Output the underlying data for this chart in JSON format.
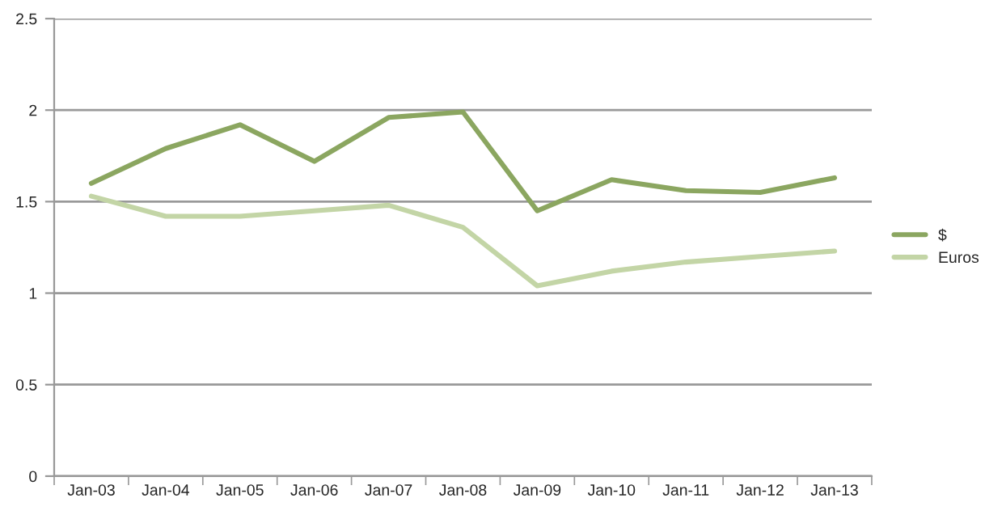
{
  "chart_data": {
    "type": "line",
    "categories": [
      "Jan-03",
      "Jan-04",
      "Jan-05",
      "Jan-06",
      "Jan-07",
      "Jan-08",
      "Jan-09",
      "Jan-10",
      "Jan-11",
      "Jan-12",
      "Jan-13"
    ],
    "series": [
      {
        "name": "$",
        "color": "#8ba660",
        "values": [
          1.6,
          1.79,
          1.92,
          1.72,
          1.96,
          1.99,
          1.45,
          1.62,
          1.56,
          1.55,
          1.63
        ]
      },
      {
        "name": "Euros",
        "color": "#c3d5a6",
        "values": [
          1.53,
          1.42,
          1.42,
          1.45,
          1.48,
          1.36,
          1.04,
          1.12,
          1.17,
          1.2,
          1.23
        ]
      }
    ],
    "ylim": [
      0,
      2.5
    ],
    "yticks": [
      0,
      0.5,
      1,
      1.5,
      2,
      2.5
    ],
    "grid": "y",
    "legend": "right",
    "marker": "none",
    "line_style": "solid"
  }
}
